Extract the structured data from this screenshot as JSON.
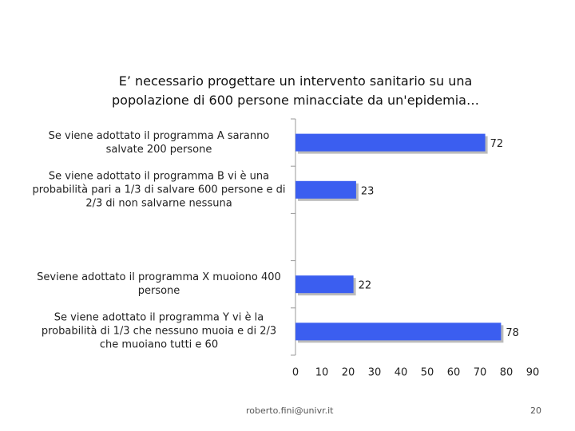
{
  "chart_data": {
    "type": "barh",
    "title": "E’ necessario progettare un intervento sanitario su una popolazione di 600 persone minacciate da un'epidemia…",
    "categories": [
      "Se viene adottato il programma A saranno salvate 200 persone",
      "Se viene adottato il programma B vi è una probabilità pari a 1/3 di salvare 600 persone e di 2/3 di non salvarne nessuna",
      null,
      "Seviene adottato il programma X muoiono 400 persone",
      "Se viene adottato il programma Y vi è la probabilità di 1/3 che nessuno muoia e di 2/3 che muoiano tutti e 60"
    ],
    "values": [
      72,
      23,
      null,
      22,
      78
    ],
    "color": "#3b5ef0",
    "xlim": [
      0,
      90
    ],
    "xticks": [
      0,
      10,
      20,
      30,
      40,
      50,
      60,
      70,
      80,
      90
    ]
  },
  "footer": {
    "email": "roberto.fini@univr.it",
    "page": "20"
  }
}
